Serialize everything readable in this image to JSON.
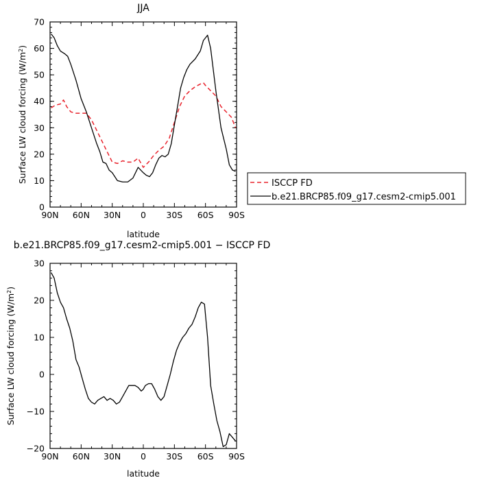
{
  "chart_data": [
    {
      "type": "line",
      "title": "JJA",
      "xlabel": "latitude",
      "ylabel_main": "Surface LW cloud forcing (W/m",
      "ylabel_sup": "2",
      "ylabel_close": ")",
      "xlim": [
        90,
        -90
      ],
      "ylim": [
        0,
        70
      ],
      "x_ticks": [
        90,
        60,
        30,
        0,
        -30,
        -60,
        -90
      ],
      "x_tick_labels": [
        "90N",
        "60N",
        "30N",
        "0",
        "30S",
        "60S",
        "90S"
      ],
      "y_ticks": [
        0,
        10,
        20,
        30,
        40,
        50,
        60,
        70
      ],
      "y_tick_labels": [
        "0",
        "10",
        "20",
        "30",
        "40",
        "50",
        "60",
        "70"
      ],
      "legend": {
        "placement": "right",
        "entries": [
          "ISCCP FD",
          "b.e21.BRCP85.f09_g17.cesm2-cmip5.001"
        ]
      },
      "series": [
        {
          "name": "ISCCP FD",
          "color": "#e8202a",
          "dash": true,
          "x": [
            89,
            85,
            80,
            77,
            74,
            70,
            65,
            60,
            55,
            50,
            45,
            40,
            35,
            30,
            25,
            20,
            15,
            10,
            5,
            0,
            -5,
            -10,
            -15,
            -20,
            -25,
            -30,
            -35,
            -40,
            -45,
            -50,
            -55,
            -58,
            -60,
            -65,
            -70,
            -75,
            -80,
            -85,
            -89
          ],
          "y": [
            37.5,
            38.5,
            39,
            40.5,
            38,
            36,
            35.5,
            35.5,
            35.5,
            33,
            29,
            25,
            21,
            17,
            16.5,
            17.5,
            17,
            17,
            18.5,
            15,
            17,
            19.5,
            21.5,
            23,
            26,
            32,
            38,
            42,
            44,
            45.5,
            46.5,
            47,
            46,
            44,
            42,
            38,
            36,
            34,
            30
          ]
        },
        {
          "name": "b.e21.BRCP85.f09_g17.cesm2-cmip5.001",
          "color": "#000000",
          "dash": false,
          "x": [
            89,
            86,
            83,
            80,
            76,
            73,
            70,
            65,
            60,
            55,
            50,
            45,
            42,
            39,
            36,
            33,
            30,
            25,
            20,
            15,
            10,
            5,
            0,
            -3,
            -6,
            -9,
            -12,
            -15,
            -18,
            -21,
            -24,
            -27,
            -30,
            -33,
            -36,
            -39,
            -42,
            -45,
            -50,
            -55,
            -58,
            -60,
            -62,
            -65,
            -70,
            -75,
            -80,
            -83,
            -86,
            -89
          ],
          "y": [
            65.5,
            64,
            61,
            59,
            58,
            57,
            54,
            48,
            41,
            36,
            30,
            24,
            21,
            17,
            16.5,
            14,
            13,
            10,
            9.5,
            9.5,
            11,
            15,
            13,
            12,
            11.5,
            13,
            16,
            18.5,
            19.5,
            19,
            20,
            24,
            31,
            38,
            45,
            49,
            52,
            54,
            56,
            59,
            63,
            64,
            65,
            60,
            44,
            30,
            22,
            16,
            14,
            13.5
          ]
        }
      ]
    },
    {
      "type": "line",
      "title": "b.e21.BRCP85.f09_g17.cesm2-cmip5.001 − ISCCP FD",
      "xlabel": "latitude",
      "ylabel_main": "Surface LW cloud forcing (W/m",
      "ylabel_sup": "2",
      "ylabel_close": ")",
      "xlim": [
        90,
        -90
      ],
      "ylim": [
        -20,
        30
      ],
      "x_ticks": [
        90,
        60,
        30,
        0,
        -30,
        -60,
        -90
      ],
      "x_tick_labels": [
        "90N",
        "60N",
        "30N",
        "0",
        "30S",
        "60S",
        "90S"
      ],
      "y_ticks": [
        -20,
        -10,
        0,
        10,
        20,
        30
      ],
      "y_tick_labels": [
        "−20",
        "−10",
        "0",
        "10",
        "20",
        "30"
      ],
      "series": [
        {
          "color": "#000000",
          "dash": false,
          "x": [
            89,
            86,
            83,
            80,
            77,
            74,
            71,
            68,
            65,
            62,
            59,
            56,
            53,
            50,
            47,
            44,
            41,
            38,
            35,
            32,
            29,
            26,
            23,
            20,
            17,
            14,
            11,
            8,
            5,
            2,
            0,
            -2,
            -5,
            -8,
            -11,
            -14,
            -17,
            -20,
            -23,
            -26,
            -29,
            -32,
            -35,
            -38,
            -41,
            -44,
            -47,
            -50,
            -53,
            -56,
            -59,
            -62,
            -65,
            -68,
            -71,
            -74,
            -77,
            -80,
            -83,
            -86,
            -89
          ],
          "y": [
            27.5,
            26,
            22,
            19.5,
            18,
            15,
            12.5,
            9,
            4,
            2,
            -1,
            -4,
            -6.5,
            -7.5,
            -8,
            -7,
            -6.5,
            -6,
            -7,
            -6.5,
            -7,
            -8,
            -7.5,
            -6,
            -4.5,
            -3,
            -3,
            -3,
            -3.5,
            -4.5,
            -4,
            -3,
            -2.5,
            -2.5,
            -4,
            -6,
            -7,
            -6,
            -3,
            0,
            3.5,
            6.5,
            8.5,
            10,
            11,
            12.5,
            13.5,
            15.5,
            18,
            19.5,
            19,
            10,
            -3,
            -8,
            -12.5,
            -15.5,
            -19.5,
            -19,
            -16,
            -17,
            -18
          ]
        }
      ]
    }
  ]
}
